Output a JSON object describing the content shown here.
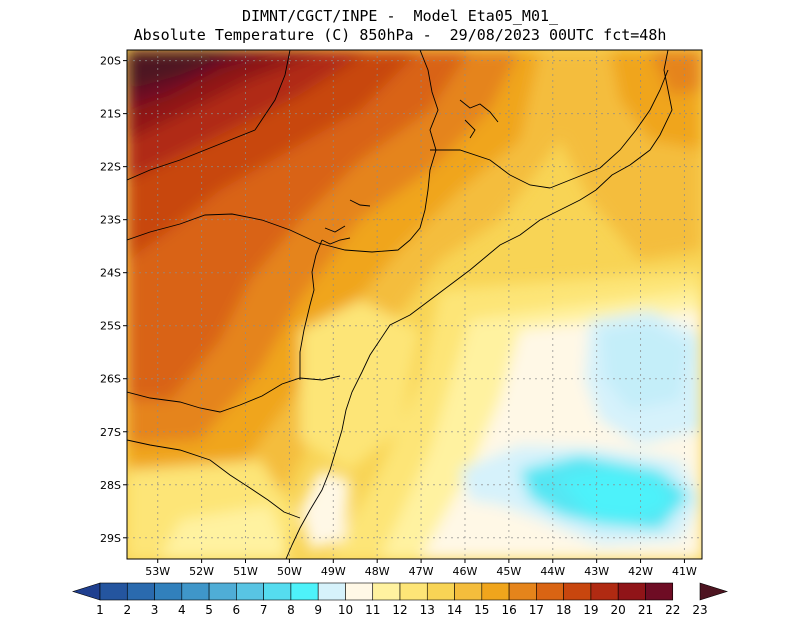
{
  "title": {
    "line1": "DIMNT/CGCT/INPE -  Model Eta05_M01_",
    "line2": "Absolute Temperature (C) 850hPa -  29/08/2023 00UTC fct=48h"
  },
  "map": {
    "lat_ticks": [
      "20S",
      "21S",
      "22S",
      "23S",
      "24S",
      "25S",
      "26S",
      "27S",
      "28S",
      "29S"
    ],
    "lon_ticks": [
      "53W",
      "52W",
      "51W",
      "50W",
      "49W",
      "48W",
      "47W",
      "46W",
      "45W",
      "44W",
      "43W",
      "42W",
      "41W"
    ],
    "lon_range": [
      -53.7,
      -40.6
    ],
    "lat_range": [
      -29.4,
      -19.8
    ]
  },
  "colorbar": {
    "labels": [
      "1",
      "2",
      "3",
      "4",
      "5",
      "6",
      "7",
      "8",
      "9",
      "10",
      "11",
      "12",
      "13",
      "14",
      "15",
      "16",
      "17",
      "18",
      "19",
      "20",
      "21",
      "22",
      "23"
    ],
    "colors": [
      "#1f3f8f",
      "#24559f",
      "#2a6aae",
      "#3180bc",
      "#3f96c9",
      "#4fadd6",
      "#58c4e3",
      "#55dcef",
      "#4ef2fa",
      "#d6f2fb",
      "#fff8e6",
      "#fff2a0",
      "#fde577",
      "#f8d455",
      "#f4bd3c",
      "#f0a51c",
      "#e5841b",
      "#d96413",
      "#c8460e",
      "#b02a12",
      "#901418",
      "#6e0c24",
      "#4d1420"
    ]
  }
}
